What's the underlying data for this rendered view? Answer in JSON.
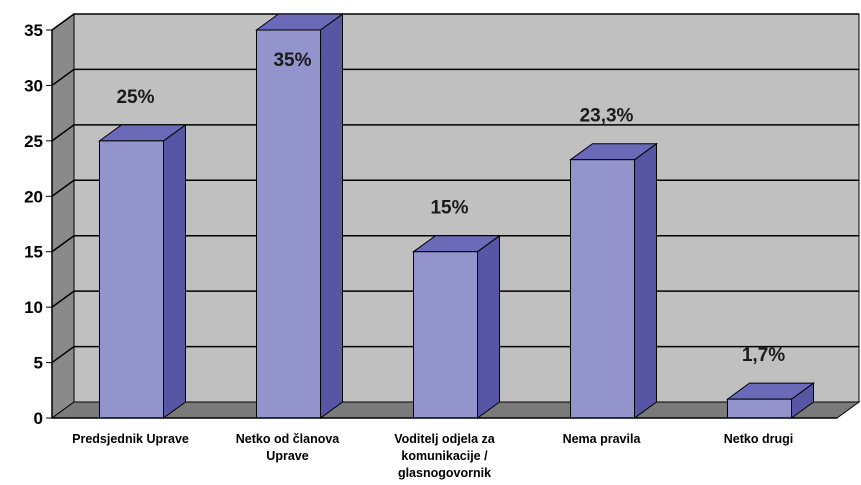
{
  "chart_data": {
    "type": "bar",
    "style": "3d-column",
    "categories": [
      [
        "Predsjednik Uprave"
      ],
      [
        "Netko od članova",
        "Uprave"
      ],
      [
        "Voditelj odjela za",
        "komunikacije /",
        "glasnogovornik"
      ],
      [
        "Nema pravila"
      ],
      [
        "Netko drugi"
      ]
    ],
    "values": [
      25,
      35,
      15,
      23.3,
      1.7
    ],
    "data_labels": [
      "25%",
      "35%",
      "15%",
      "23,3%",
      "1,7%"
    ],
    "yticks": [
      "0",
      "5",
      "10",
      "15",
      "20",
      "25",
      "30",
      "35"
    ],
    "ylim": [
      0,
      35
    ],
    "grid": true,
    "legend": "none",
    "colors": {
      "bar_front": "#9494cc",
      "bar_side": "#5656a4",
      "bar_top": "#6a6ab8",
      "back_wall": "#c0c0c0",
      "side_wall": "#8a8a8a",
      "floor": "#7a7a7a",
      "gridline": "#000000"
    }
  }
}
